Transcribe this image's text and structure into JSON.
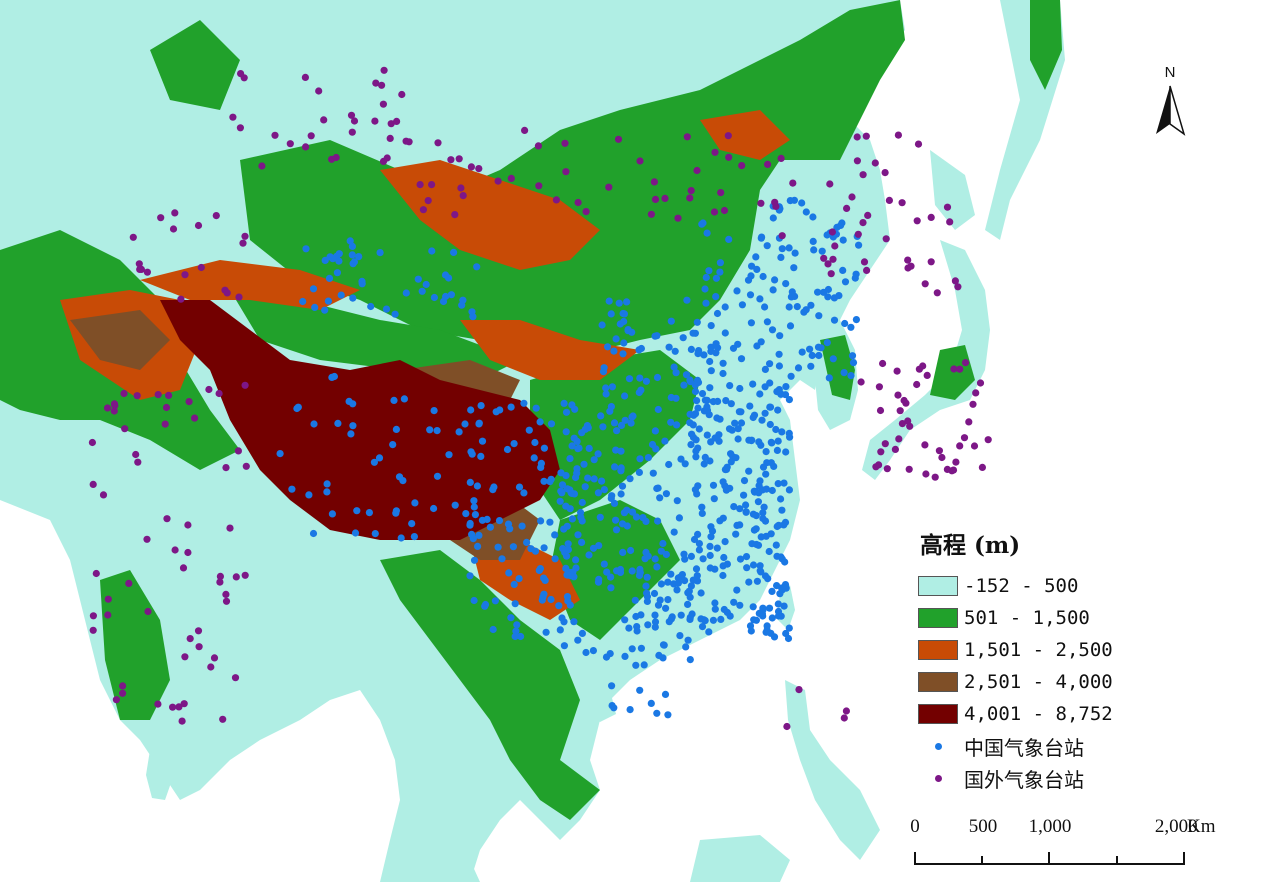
{
  "legend": {
    "title": "高程 (m)",
    "elevation_classes": [
      {
        "label": "-152 - 500",
        "color": "#b0eee4"
      },
      {
        "label": "501 - 1,500",
        "color": "#21a12b"
      },
      {
        "label": "1,501 - 2,500",
        "color": "#c84b06"
      },
      {
        "label": "2,501 - 4,000",
        "color": "#7f4f27"
      },
      {
        "label": "4,001 - 8,752",
        "color": "#730000"
      }
    ],
    "stations": [
      {
        "label": "中国气象台站",
        "color": "#1a78e4"
      },
      {
        "label": "国外气象台站",
        "color": "#7d1787"
      }
    ]
  },
  "north_arrow": {
    "label": "N"
  },
  "scale_bar": {
    "ticks": [
      "0",
      "500",
      "1,000",
      "2,000"
    ],
    "unit": "Km"
  },
  "colors": {
    "ocean": "#ffffff",
    "low_land": "#b0eee4",
    "china_station": "#1a78e4",
    "foreign_station": "#7d1787"
  },
  "icons": [
    "north-arrow-icon"
  ]
}
